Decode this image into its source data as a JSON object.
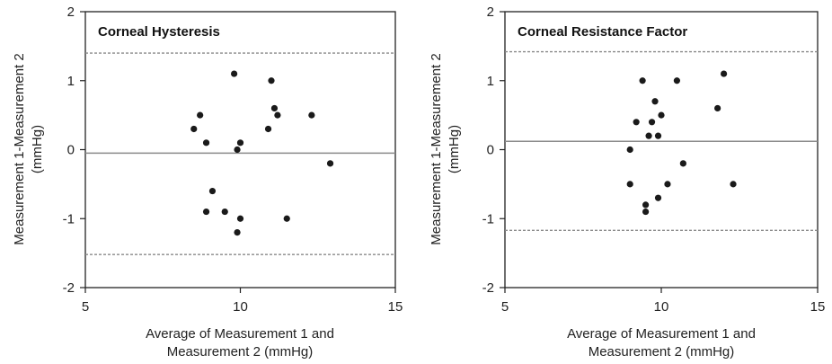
{
  "chart_data": [
    {
      "type": "scatter",
      "title": "Corneal Hysteresis",
      "xlabel": [
        "Average of Measurement 1 and",
        "Measurement 2 (mmHg)"
      ],
      "ylabel": [
        "Measurement 1-Measurement 2",
        "(mmHg)"
      ],
      "xlim": [
        5,
        15
      ],
      "ylim": [
        -2,
        2
      ],
      "xticks": [
        "5",
        "10",
        "15"
      ],
      "yticks": [
        "2",
        "1",
        "0",
        "-1",
        "-2"
      ],
      "grid": false,
      "mean_line": -0.05,
      "limits_of_agreement": [
        1.4,
        -1.52
      ],
      "points": [
        {
          "x": 8.5,
          "y": 0.3
        },
        {
          "x": 8.7,
          "y": 0.5
        },
        {
          "x": 8.9,
          "y": 0.1
        },
        {
          "x": 8.9,
          "y": -0.9
        },
        {
          "x": 9.1,
          "y": -0.6
        },
        {
          "x": 9.5,
          "y": -0.9
        },
        {
          "x": 9.8,
          "y": 1.1
        },
        {
          "x": 9.9,
          "y": 0.0
        },
        {
          "x": 10.0,
          "y": 0.1
        },
        {
          "x": 9.9,
          "y": -1.2
        },
        {
          "x": 10.0,
          "y": -1.0
        },
        {
          "x": 10.9,
          "y": 0.3
        },
        {
          "x": 11.0,
          "y": 1.0
        },
        {
          "x": 11.1,
          "y": 0.6
        },
        {
          "x": 11.2,
          "y": 0.5
        },
        {
          "x": 11.5,
          "y": -1.0
        },
        {
          "x": 12.3,
          "y": 0.5
        },
        {
          "x": 12.9,
          "y": -0.2
        }
      ]
    },
    {
      "type": "scatter",
      "title": "Corneal Resistance Factor",
      "xlabel": [
        "Average of Measurement 1 and",
        "Measurement 2 (mmHg)"
      ],
      "ylabel": [
        "Measurement 1-Measurement 2",
        "(mmHg)"
      ],
      "xlim": [
        5,
        15
      ],
      "ylim": [
        -2,
        2
      ],
      "xticks": [
        "5",
        "10",
        "15"
      ],
      "yticks": [
        "2",
        "1",
        "0",
        "-1",
        "-2"
      ],
      "grid": false,
      "mean_line": 0.12,
      "limits_of_agreement": [
        1.42,
        -1.17
      ],
      "points": [
        {
          "x": 9.0,
          "y": 0.0
        },
        {
          "x": 9.0,
          "y": -0.5
        },
        {
          "x": 9.2,
          "y": 0.4
        },
        {
          "x": 9.4,
          "y": 1.0
        },
        {
          "x": 9.6,
          "y": 0.2
        },
        {
          "x": 9.5,
          "y": -0.8
        },
        {
          "x": 9.5,
          "y": -0.9
        },
        {
          "x": 9.7,
          "y": 0.4
        },
        {
          "x": 9.8,
          "y": 0.7
        },
        {
          "x": 9.9,
          "y": 0.2
        },
        {
          "x": 10.0,
          "y": 0.5
        },
        {
          "x": 9.9,
          "y": -0.7
        },
        {
          "x": 10.2,
          "y": -0.5
        },
        {
          "x": 10.5,
          "y": 1.0
        },
        {
          "x": 10.7,
          "y": -0.2
        },
        {
          "x": 11.8,
          "y": 0.6
        },
        {
          "x": 12.0,
          "y": 1.1
        },
        {
          "x": 12.3,
          "y": -0.5
        }
      ]
    }
  ]
}
